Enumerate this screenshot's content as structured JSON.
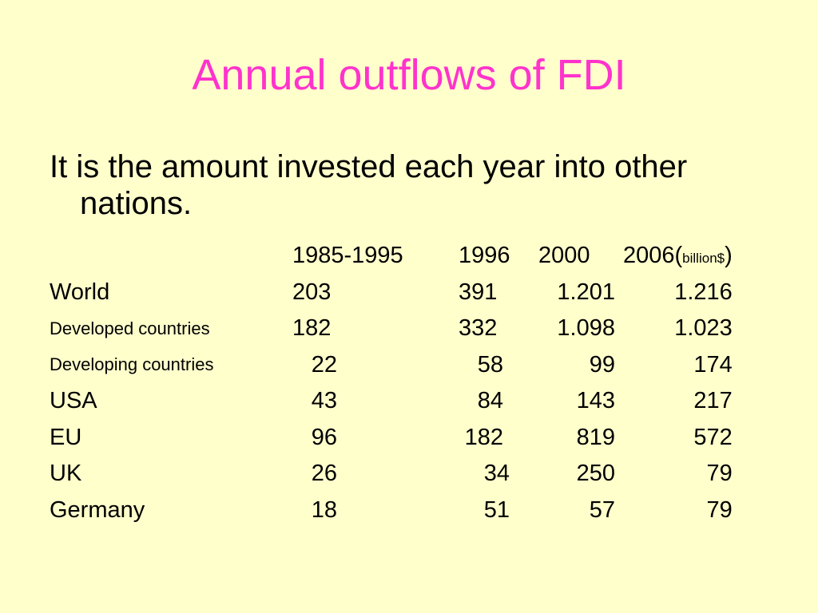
{
  "slide": {
    "title": "Annual outflows of FDI",
    "body": "It is the amount invested each year into other nations."
  },
  "table": {
    "headers": {
      "col1": "1985-1995",
      "col2": "1996",
      "col3": "2000",
      "col4_prefix": "2006(",
      "col4_unit": "billion$",
      "col4_suffix": ")"
    },
    "rows": [
      {
        "label": "World",
        "v1": "203",
        "v2": "391",
        "v3": "1.201",
        "v4": "1.216"
      },
      {
        "label": "Developed countries",
        "v1": "182",
        "v2": "332",
        "v3": "1.098",
        "v4": "1.023"
      },
      {
        "label": "Developing countries",
        "v1": "22",
        "v2": "58",
        "v3": "99",
        "v4": "174"
      },
      {
        "label": "USA",
        "v1": "43",
        "v2": "84",
        "v3": "143",
        "v4": "217"
      },
      {
        "label": "EU",
        "v1": "96",
        "v2": "182",
        "v3": "819",
        "v4": "572"
      },
      {
        "label": "UK",
        "v1": "26",
        "v2": "34",
        "v3": "250",
        "v4": "79"
      },
      {
        "label": "Germany",
        "v1": "18",
        "v2": "51",
        "v3": "57",
        "v4": "79"
      }
    ]
  },
  "colors": {
    "background": "#ffffcc",
    "title": "#ff33cc",
    "text": "#000000"
  }
}
